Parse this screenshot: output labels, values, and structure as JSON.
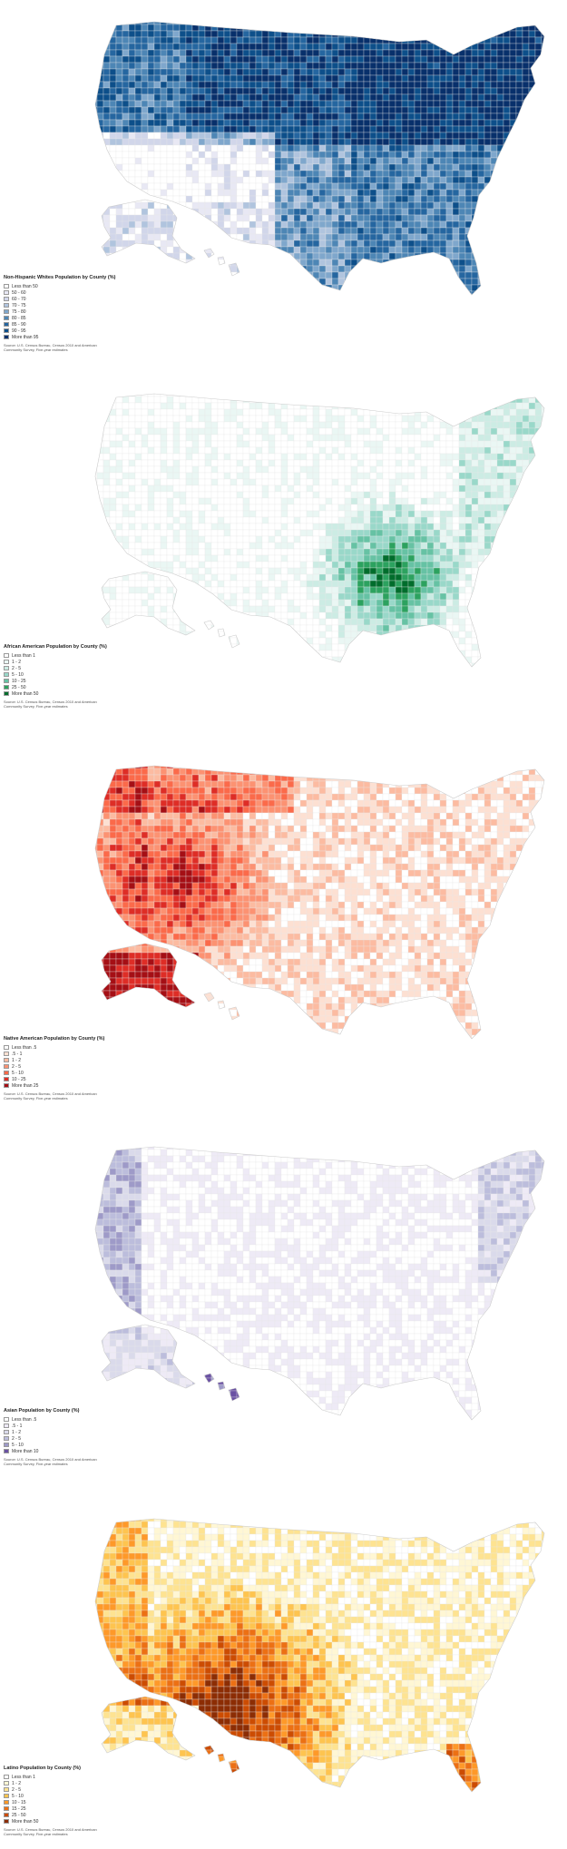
{
  "maps": [
    {
      "id": "white",
      "legend": {
        "title": "Non-Hispanic Whites Population by County (%)",
        "items": [
          "Less than 50",
          "50 - 60",
          "60 - 70",
          "70 - 75",
          "75 - 80",
          "80 - 85",
          "85 - 90",
          "90 - 95",
          "More than 95"
        ],
        "colors": [
          "#ffffff",
          "#e8e8f4",
          "#d1d6ea",
          "#b0c4de",
          "#7fa7cc",
          "#4d86b5",
          "#2566a0",
          "#0d4f8a",
          "#08306b"
        ],
        "source": "Source: U.S. Census Bureau, Census 2010 and American Community Survey, Five-year estimates"
      }
    },
    {
      "id": "african-american",
      "legend": {
        "title": "African American Population by County (%)",
        "items": [
          "Less than 1",
          "1 - 2",
          "2 - 5",
          "5 - 10",
          "10 - 25",
          "25 - 50",
          "More than 50"
        ],
        "colors": [
          "#ffffff",
          "#eaf7f4",
          "#ccece4",
          "#99d8c9",
          "#66c2a4",
          "#2ca25f",
          "#006d2c"
        ],
        "source": "Source: U.S. Census Bureau, Census 2010 and American Community Survey, Five-year estimates"
      }
    },
    {
      "id": "native-american",
      "legend": {
        "title": "Native American Population by County (%)",
        "items": [
          "Less than .5",
          ".5 - 1",
          "1 - 2",
          "2 - 5",
          "5 - 10",
          "10 - 25",
          "More than 25"
        ],
        "colors": [
          "#ffffff",
          "#fde0d2",
          "#fcbba1",
          "#fc9272",
          "#fb6a4a",
          "#de2d26",
          "#a50f15"
        ],
        "source": "Source: U.S. Census Bureau, Census 2010 and American Community Survey, Five-year estimates"
      }
    },
    {
      "id": "asian",
      "legend": {
        "title": "Asian Population by County (%)",
        "items": [
          "Less than .5",
          ".5 - 1",
          "1 - 2",
          "2 - 5",
          "5 - 10",
          "More than 10"
        ],
        "colors": [
          "#ffffff",
          "#eeeaf6",
          "#dadaeb",
          "#bcbddc",
          "#9e9ac8",
          "#6a51a3"
        ],
        "source": "Source: U.S. Census Bureau, Census 2010 and American Community Survey, Five-year estimates"
      }
    },
    {
      "id": "latino",
      "legend": {
        "title": "Latino Population by County (%)",
        "items": [
          "Less than 1",
          "1 - 2",
          "2 - 5",
          "5 - 10",
          "10 - 15",
          "15 - 25",
          "25 - 50",
          "More than 50"
        ],
        "colors": [
          "#ffffff",
          "#fff7d4",
          "#fee391",
          "#fec44f",
          "#fe9929",
          "#ec7014",
          "#cc4c02",
          "#8c2d04"
        ],
        "source": "Source: U.S. Census Bureau, Census 2010 and American Community Survey, Five-year estimates"
      }
    }
  ]
}
